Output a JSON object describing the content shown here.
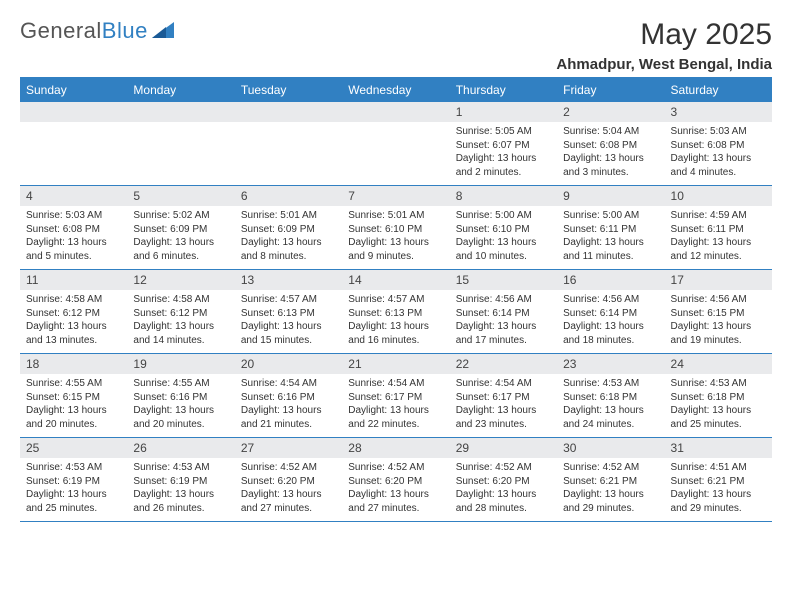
{
  "logo": {
    "word1": "General",
    "word2": "Blue"
  },
  "title": "May 2025",
  "subtitle": "Ahmadpur, West Bengal, India",
  "colors": {
    "accent": "#3180c2",
    "header_bg": "#3180c2",
    "header_text": "#ffffff",
    "daynum_bg": "#e9eaec",
    "body_text": "#333333",
    "background": "#ffffff"
  },
  "day_headers": [
    "Sunday",
    "Monday",
    "Tuesday",
    "Wednesday",
    "Thursday",
    "Friday",
    "Saturday"
  ],
  "weeks": [
    [
      {
        "n": "",
        "sunrise": "",
        "sunset": "",
        "daylight": ""
      },
      {
        "n": "",
        "sunrise": "",
        "sunset": "",
        "daylight": ""
      },
      {
        "n": "",
        "sunrise": "",
        "sunset": "",
        "daylight": ""
      },
      {
        "n": "",
        "sunrise": "",
        "sunset": "",
        "daylight": ""
      },
      {
        "n": "1",
        "sunrise": "Sunrise: 5:05 AM",
        "sunset": "Sunset: 6:07 PM",
        "daylight": "Daylight: 13 hours and 2 minutes."
      },
      {
        "n": "2",
        "sunrise": "Sunrise: 5:04 AM",
        "sunset": "Sunset: 6:08 PM",
        "daylight": "Daylight: 13 hours and 3 minutes."
      },
      {
        "n": "3",
        "sunrise": "Sunrise: 5:03 AM",
        "sunset": "Sunset: 6:08 PM",
        "daylight": "Daylight: 13 hours and 4 minutes."
      }
    ],
    [
      {
        "n": "4",
        "sunrise": "Sunrise: 5:03 AM",
        "sunset": "Sunset: 6:08 PM",
        "daylight": "Daylight: 13 hours and 5 minutes."
      },
      {
        "n": "5",
        "sunrise": "Sunrise: 5:02 AM",
        "sunset": "Sunset: 6:09 PM",
        "daylight": "Daylight: 13 hours and 6 minutes."
      },
      {
        "n": "6",
        "sunrise": "Sunrise: 5:01 AM",
        "sunset": "Sunset: 6:09 PM",
        "daylight": "Daylight: 13 hours and 8 minutes."
      },
      {
        "n": "7",
        "sunrise": "Sunrise: 5:01 AM",
        "sunset": "Sunset: 6:10 PM",
        "daylight": "Daylight: 13 hours and 9 minutes."
      },
      {
        "n": "8",
        "sunrise": "Sunrise: 5:00 AM",
        "sunset": "Sunset: 6:10 PM",
        "daylight": "Daylight: 13 hours and 10 minutes."
      },
      {
        "n": "9",
        "sunrise": "Sunrise: 5:00 AM",
        "sunset": "Sunset: 6:11 PM",
        "daylight": "Daylight: 13 hours and 11 minutes."
      },
      {
        "n": "10",
        "sunrise": "Sunrise: 4:59 AM",
        "sunset": "Sunset: 6:11 PM",
        "daylight": "Daylight: 13 hours and 12 minutes."
      }
    ],
    [
      {
        "n": "11",
        "sunrise": "Sunrise: 4:58 AM",
        "sunset": "Sunset: 6:12 PM",
        "daylight": "Daylight: 13 hours and 13 minutes."
      },
      {
        "n": "12",
        "sunrise": "Sunrise: 4:58 AM",
        "sunset": "Sunset: 6:12 PM",
        "daylight": "Daylight: 13 hours and 14 minutes."
      },
      {
        "n": "13",
        "sunrise": "Sunrise: 4:57 AM",
        "sunset": "Sunset: 6:13 PM",
        "daylight": "Daylight: 13 hours and 15 minutes."
      },
      {
        "n": "14",
        "sunrise": "Sunrise: 4:57 AM",
        "sunset": "Sunset: 6:13 PM",
        "daylight": "Daylight: 13 hours and 16 minutes."
      },
      {
        "n": "15",
        "sunrise": "Sunrise: 4:56 AM",
        "sunset": "Sunset: 6:14 PM",
        "daylight": "Daylight: 13 hours and 17 minutes."
      },
      {
        "n": "16",
        "sunrise": "Sunrise: 4:56 AM",
        "sunset": "Sunset: 6:14 PM",
        "daylight": "Daylight: 13 hours and 18 minutes."
      },
      {
        "n": "17",
        "sunrise": "Sunrise: 4:56 AM",
        "sunset": "Sunset: 6:15 PM",
        "daylight": "Daylight: 13 hours and 19 minutes."
      }
    ],
    [
      {
        "n": "18",
        "sunrise": "Sunrise: 4:55 AM",
        "sunset": "Sunset: 6:15 PM",
        "daylight": "Daylight: 13 hours and 20 minutes."
      },
      {
        "n": "19",
        "sunrise": "Sunrise: 4:55 AM",
        "sunset": "Sunset: 6:16 PM",
        "daylight": "Daylight: 13 hours and 20 minutes."
      },
      {
        "n": "20",
        "sunrise": "Sunrise: 4:54 AM",
        "sunset": "Sunset: 6:16 PM",
        "daylight": "Daylight: 13 hours and 21 minutes."
      },
      {
        "n": "21",
        "sunrise": "Sunrise: 4:54 AM",
        "sunset": "Sunset: 6:17 PM",
        "daylight": "Daylight: 13 hours and 22 minutes."
      },
      {
        "n": "22",
        "sunrise": "Sunrise: 4:54 AM",
        "sunset": "Sunset: 6:17 PM",
        "daylight": "Daylight: 13 hours and 23 minutes."
      },
      {
        "n": "23",
        "sunrise": "Sunrise: 4:53 AM",
        "sunset": "Sunset: 6:18 PM",
        "daylight": "Daylight: 13 hours and 24 minutes."
      },
      {
        "n": "24",
        "sunrise": "Sunrise: 4:53 AM",
        "sunset": "Sunset: 6:18 PM",
        "daylight": "Daylight: 13 hours and 25 minutes."
      }
    ],
    [
      {
        "n": "25",
        "sunrise": "Sunrise: 4:53 AM",
        "sunset": "Sunset: 6:19 PM",
        "daylight": "Daylight: 13 hours and 25 minutes."
      },
      {
        "n": "26",
        "sunrise": "Sunrise: 4:53 AM",
        "sunset": "Sunset: 6:19 PM",
        "daylight": "Daylight: 13 hours and 26 minutes."
      },
      {
        "n": "27",
        "sunrise": "Sunrise: 4:52 AM",
        "sunset": "Sunset: 6:20 PM",
        "daylight": "Daylight: 13 hours and 27 minutes."
      },
      {
        "n": "28",
        "sunrise": "Sunrise: 4:52 AM",
        "sunset": "Sunset: 6:20 PM",
        "daylight": "Daylight: 13 hours and 27 minutes."
      },
      {
        "n": "29",
        "sunrise": "Sunrise: 4:52 AM",
        "sunset": "Sunset: 6:20 PM",
        "daylight": "Daylight: 13 hours and 28 minutes."
      },
      {
        "n": "30",
        "sunrise": "Sunrise: 4:52 AM",
        "sunset": "Sunset: 6:21 PM",
        "daylight": "Daylight: 13 hours and 29 minutes."
      },
      {
        "n": "31",
        "sunrise": "Sunrise: 4:51 AM",
        "sunset": "Sunset: 6:21 PM",
        "daylight": "Daylight: 13 hours and 29 minutes."
      }
    ]
  ]
}
